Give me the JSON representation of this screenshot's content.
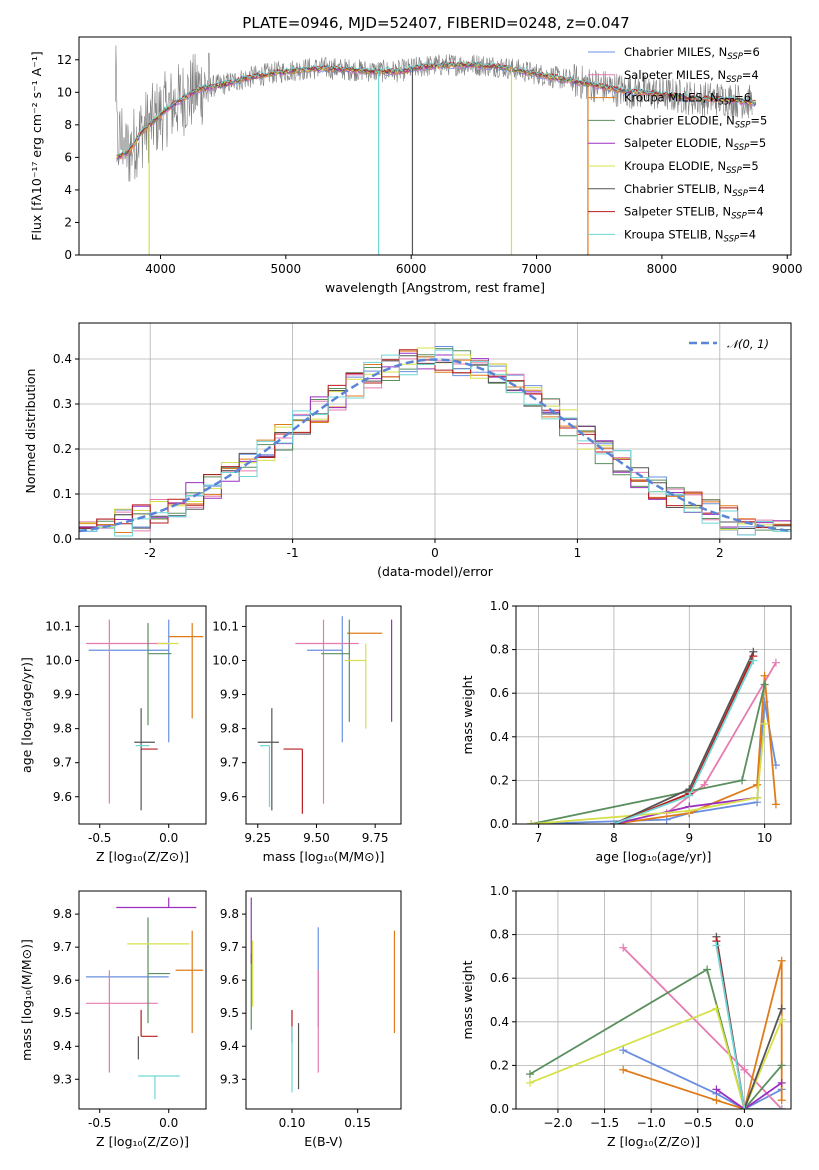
{
  "figure": {
    "title": "PLATE=0946, MJD=52407, FIBERID=0248, z=0.047"
  },
  "colors": {
    "Chabrier MILES": "#6a8fe0",
    "Salpeter MILES": "#e67bb0",
    "Kroupa MILES": "#e07b1a",
    "Chabrier ELODIE": "#5a8f5e",
    "Salpeter ELODIE": "#9b30c0",
    "Kroupa ELODIE": "#d6e04a",
    "Chabrier STELIB": "#555555",
    "Salpeter STELIB": "#b81c1c",
    "Kroupa STELIB": "#6fd6d6"
  },
  "chart_data": [
    {
      "id": "spectrum",
      "type": "line",
      "xlabel": "wavelength [Angstrom, rest frame]",
      "ylabel": "Flux [fλ10⁻¹⁷ erg cm⁻² s⁻¹ A⁻¹]",
      "xlim": [
        3350,
        9030
      ],
      "ylim": [
        0,
        13.4
      ],
      "xticks": [
        4000,
        5000,
        6000,
        7000,
        8000,
        9000
      ],
      "yticks": [
        0,
        2,
        4,
        6,
        8,
        10,
        12
      ],
      "legend_position": "top-right",
      "legend": [
        {
          "name": "Chabrier MILES",
          "label": "Chabrier MILES, N",
          "sub": "SSP",
          "post": "=6"
        },
        {
          "name": "Salpeter MILES",
          "label": "Salpeter MILES, N",
          "sub": "SSP",
          "post": "=4"
        },
        {
          "name": "Kroupa MILES",
          "label": "Kroupa MILES, N",
          "sub": "SSP",
          "post": "=6"
        },
        {
          "name": "Chabrier ELODIE",
          "label": "Chabrier ELODIE, N",
          "sub": "SSP",
          "post": "=5"
        },
        {
          "name": "Salpeter ELODIE",
          "label": "Salpeter ELODIE, N",
          "sub": "SSP",
          "post": "=5"
        },
        {
          "name": "Kroupa ELODIE",
          "label": "Kroupa ELODIE, N",
          "sub": "SSP",
          "post": "=5"
        },
        {
          "name": "Chabrier STELIB",
          "label": "Chabrier STELIB, N",
          "sub": "SSP",
          "post": "=4"
        },
        {
          "name": "Salpeter STELIB",
          "label": "Salpeter STELIB, N",
          "sub": "SSP",
          "post": "=4"
        },
        {
          "name": "Kroupa STELIB",
          "label": "Kroupa STELIB, N",
          "sub": "SSP",
          "post": "=4"
        }
      ],
      "data_curve": {
        "x": [
          3650,
          3750,
          3850,
          3950,
          4050,
          4150,
          4300,
          4500,
          4700,
          4900,
          5100,
          5300,
          5500,
          5700,
          5900,
          6100,
          6300,
          6500,
          6700,
          6900,
          7100,
          7300,
          7500,
          7700,
          7900,
          8100,
          8300,
          8500,
          8700
        ],
        "y": [
          6.0,
          6.4,
          7.6,
          8.3,
          9.0,
          9.5,
          10.2,
          10.5,
          10.9,
          11.2,
          11.4,
          11.5,
          11.4,
          11.3,
          11.3,
          11.6,
          11.7,
          11.7,
          11.6,
          11.3,
          11.0,
          10.7,
          10.4,
          10.1,
          10.0,
          9.8,
          9.6,
          9.6,
          9.4
        ]
      },
      "dips": [
        {
          "x": 3910,
          "y": 0,
          "series": "Kroupa ELODIE"
        },
        {
          "x": 5740,
          "y": 0,
          "series": "Kroupa STELIB"
        },
        {
          "x": 6010,
          "y": 0,
          "series": "Chabrier STELIB"
        },
        {
          "x": 6800,
          "y": 0,
          "series": "Kroupa ELODIE"
        },
        {
          "x": 7410,
          "y": 0,
          "series": "Kroupa MILES"
        }
      ]
    },
    {
      "id": "residuals",
      "type": "histogram",
      "xlabel": "(data-model)/error",
      "ylabel": "Normed distribution",
      "xlim": [
        -2.5,
        2.5
      ],
      "ylim": [
        0,
        0.48
      ],
      "xticks": [
        -2,
        -1,
        0,
        1,
        2
      ],
      "yticks": [
        0.0,
        0.1,
        0.2,
        0.3,
        0.4
      ],
      "grid": true,
      "legend_position": "top-right",
      "reference_curve": {
        "label": "𝒩(0, 1)",
        "mean": 0,
        "sigma": 1,
        "color": "#5b84d6"
      }
    },
    {
      "id": "age-vs-Z",
      "type": "errorbar",
      "xlabel": "Z [log₁₀(Z/Z⊙)]",
      "ylabel": "age  [log₁₀(age/yr)]",
      "xlim": [
        -0.65,
        0.27
      ],
      "ylim": [
        9.52,
        10.16
      ],
      "xticks": [
        -0.5,
        0.0
      ],
      "yticks": [
        9.6,
        9.7,
        9.8,
        9.9,
        10.0,
        10.1
      ],
      "points": [
        {
          "series": "Chabrier MILES",
          "x": 0.0,
          "xerr": [
            0.58,
            0.0
          ],
          "y": 10.03,
          "yerr": [
            0.27,
            0.09
          ]
        },
        {
          "series": "Salpeter MILES",
          "x": -0.43,
          "xerr": [
            0.17,
            0.43
          ],
          "y": 10.05,
          "yerr": [
            0.47,
            0.07
          ]
        },
        {
          "series": "Kroupa MILES",
          "x": 0.17,
          "xerr": [
            0.17,
            0.08
          ],
          "y": 10.07,
          "yerr": [
            0.24,
            0.04
          ]
        },
        {
          "series": "Chabrier ELODIE",
          "x": -0.15,
          "xerr": [
            0.0,
            0.17
          ],
          "y": 10.02,
          "yerr": [
            0.21,
            0.09
          ]
        },
        {
          "series": "Salpeter ELODIE",
          "x": -0.35,
          "xerr": [
            0.0,
            0.0
          ],
          "y": 10.05,
          "yerr": [
            0.0,
            0.0
          ]
        },
        {
          "series": "Kroupa ELODIE",
          "x": -0.08,
          "xerr": [
            0.0,
            0.15
          ],
          "y": 10.05,
          "yerr": [
            0.0,
            0.0
          ]
        },
        {
          "series": "Chabrier STELIB",
          "x": -0.2,
          "xerr": [
            0.05,
            0.1
          ],
          "y": 9.76,
          "yerr": [
            0.2,
            0.1
          ]
        },
        {
          "series": "Salpeter STELIB",
          "x": -0.2,
          "xerr": [
            0.0,
            0.12
          ],
          "y": 9.74,
          "yerr": [
            0.0,
            0.0
          ]
        },
        {
          "series": "Kroupa STELIB",
          "x": -0.22,
          "xerr": [
            0.02,
            0.08
          ],
          "y": 9.75,
          "yerr": [
            0.0,
            0.0
          ]
        }
      ]
    },
    {
      "id": "age-vs-mass",
      "type": "errorbar",
      "xlabel": "mass [log₁₀(M/M⊙)]",
      "ylabel": "",
      "xlim": [
        9.2,
        9.86
      ],
      "ylim": [
        9.52,
        10.16
      ],
      "xticks": [
        9.25,
        9.5,
        9.75
      ],
      "yticks": [
        9.6,
        9.7,
        9.8,
        9.9,
        10.0,
        10.1
      ],
      "points": [
        {
          "series": "Chabrier MILES",
          "x": 9.61,
          "xerr": [
            0.15,
            0.0
          ],
          "y": 10.03,
          "yerr": [
            0.27,
            0.1
          ]
        },
        {
          "series": "Salpeter MILES",
          "x": 9.53,
          "xerr": [
            0.12,
            0.15
          ],
          "y": 10.05,
          "yerr": [
            0.47,
            0.07
          ]
        },
        {
          "series": "Kroupa MILES",
          "x": 9.63,
          "xerr": [
            0.0,
            0.15
          ],
          "y": 10.08,
          "yerr": [
            0.0,
            0.0
          ]
        },
        {
          "series": "Chabrier ELODIE",
          "x": 9.64,
          "xerr": [
            0.12,
            0.0
          ],
          "y": 10.02,
          "yerr": [
            0.2,
            0.1
          ]
        },
        {
          "series": "Salpeter ELODIE",
          "x": 9.82,
          "xerr": [
            0.0,
            0.0
          ],
          "y": 10.05,
          "yerr": [
            0.23,
            0.07
          ]
        },
        {
          "series": "Kroupa ELODIE",
          "x": 9.71,
          "xerr": [
            0.09,
            0.0
          ],
          "y": 10.0,
          "yerr": [
            0.2,
            0.05
          ]
        },
        {
          "series": "Chabrier STELIB",
          "x": 9.31,
          "xerr": [
            0.06,
            0.03
          ],
          "y": 9.76,
          "yerr": [
            0.2,
            0.1
          ]
        },
        {
          "series": "Salpeter STELIB",
          "x": 9.44,
          "xerr": [
            0.08,
            0.0
          ],
          "y": 9.74,
          "yerr": [
            0.19,
            0.0
          ]
        },
        {
          "series": "Kroupa STELIB",
          "x": 9.3,
          "xerr": [
            0.04,
            0.0
          ],
          "y": 9.75,
          "yerr": [
            0.18,
            0.0
          ]
        }
      ]
    },
    {
      "id": "mass-weight-vs-age",
      "type": "line",
      "xlabel": "age  [log₁₀(age/yr)]",
      "ylabel": "mass weight",
      "xlim": [
        6.7,
        10.35
      ],
      "ylim": [
        0,
        1.0
      ],
      "xticks": [
        7,
        8,
        9,
        10
      ],
      "yticks": [
        0.0,
        0.2,
        0.4,
        0.6,
        0.8,
        1.0
      ],
      "grid": true,
      "series": [
        {
          "name": "Chabrier MILES",
          "x": [
            6.9,
            8.7,
            9.0,
            9.9,
            10.0,
            10.15
          ],
          "y": [
            0.0,
            0.02,
            0.05,
            0.1,
            0.56,
            0.27
          ]
        },
        {
          "name": "Salpeter MILES",
          "x": [
            8.7,
            9.2,
            10.15
          ],
          "y": [
            0.05,
            0.18,
            0.74
          ]
        },
        {
          "name": "Kroupa MILES",
          "x": [
            8.0,
            9.0,
            9.9,
            10.0,
            10.15
          ],
          "y": [
            0.0,
            0.05,
            0.18,
            0.68,
            0.09
          ]
        },
        {
          "name": "Chabrier ELODIE",
          "x": [
            6.9,
            9.0,
            9.7,
            10.0
          ],
          "y": [
            0.0,
            0.15,
            0.2,
            0.64
          ]
        },
        {
          "name": "Salpeter ELODIE",
          "x": [
            8.0,
            9.0,
            9.9
          ],
          "y": [
            0.0,
            0.08,
            0.12
          ]
        },
        {
          "name": "Kroupa ELODIE",
          "x": [
            6.9,
            9.0,
            9.9,
            10.0
          ],
          "y": [
            0.0,
            0.06,
            0.12,
            0.46
          ]
        },
        {
          "name": "Chabrier STELIB",
          "x": [
            8.0,
            9.0,
            9.85
          ],
          "y": [
            0.0,
            0.16,
            0.79
          ]
        },
        {
          "name": "Salpeter STELIB",
          "x": [
            8.0,
            9.0,
            9.85
          ],
          "y": [
            0.0,
            0.14,
            0.77
          ]
        },
        {
          "name": "Kroupa STELIB",
          "x": [
            8.0,
            9.0,
            9.85
          ],
          "y": [
            0.0,
            0.13,
            0.75
          ]
        }
      ]
    },
    {
      "id": "mass-vs-Z",
      "type": "errorbar",
      "xlabel": "Z [log₁₀(Z/Z⊙)]",
      "ylabel": "mass [log₁₀(M/M⊙)]",
      "xlim": [
        -0.65,
        0.27
      ],
      "ylim": [
        9.21,
        9.87
      ],
      "xticks": [
        -0.5,
        0.0
      ],
      "yticks": [
        9.3,
        9.4,
        9.5,
        9.6,
        9.7,
        9.8
      ],
      "points": [
        {
          "series": "Chabrier MILES",
          "x": -0.3,
          "xerr": [
            0.3,
            0.3
          ],
          "y": 9.61,
          "yerr": [
            0.0,
            0.0
          ]
        },
        {
          "series": "Salpeter MILES",
          "x": -0.43,
          "xerr": [
            0.17,
            0.35
          ],
          "y": 9.53,
          "yerr": [
            0.21,
            0.1
          ]
        },
        {
          "series": "Kroupa MILES",
          "x": 0.17,
          "xerr": [
            0.12,
            0.08
          ],
          "y": 9.63,
          "yerr": [
            0.19,
            0.12
          ]
        },
        {
          "series": "Chabrier ELODIE",
          "x": -0.15,
          "xerr": [
            0.0,
            0.16
          ],
          "y": 9.62,
          "yerr": [
            0.15,
            0.17
          ]
        },
        {
          "series": "Salpeter ELODIE",
          "x": 0.0,
          "xerr": [
            0.38,
            0.2
          ],
          "y": 9.82,
          "yerr": [
            0.0,
            0.03
          ]
        },
        {
          "series": "Kroupa ELODIE",
          "x": -0.05,
          "xerr": [
            0.25,
            0.2
          ],
          "y": 9.71,
          "yerr": [
            0.0,
            0.0
          ]
        },
        {
          "series": "Chabrier STELIB",
          "x": -0.22,
          "xerr": [
            0.0,
            0.0
          ],
          "y": 9.43,
          "yerr": [
            0.07,
            0.0
          ]
        },
        {
          "series": "Salpeter STELIB",
          "x": -0.2,
          "xerr": [
            0.0,
            0.12
          ],
          "y": 9.43,
          "yerr": [
            0.0,
            0.08
          ]
        },
        {
          "series": "Kroupa STELIB",
          "x": -0.1,
          "xerr": [
            0.12,
            0.18
          ],
          "y": 9.31,
          "yerr": [
            0.07,
            0.0
          ]
        }
      ]
    },
    {
      "id": "mass-vs-EBV",
      "type": "errorbar",
      "xlabel": "E(B-V)",
      "ylabel": "",
      "xlim": [
        0.065,
        0.183
      ],
      "ylim": [
        9.21,
        9.87
      ],
      "xticks": [
        0.1,
        0.15
      ],
      "yticks": [
        9.3,
        9.4,
        9.5,
        9.6,
        9.7,
        9.8
      ],
      "points": [
        {
          "series": "Chabrier MILES",
          "x": 0.12,
          "xerr": [
            0.0,
            0.0
          ],
          "y": 9.61,
          "yerr": [
            0.15,
            0.15
          ]
        },
        {
          "series": "Salpeter MILES",
          "x": 0.12,
          "xerr": [
            0.0,
            0.0
          ],
          "y": 9.53,
          "yerr": [
            0.21,
            0.1
          ]
        },
        {
          "series": "Kroupa MILES",
          "x": 0.178,
          "xerr": [
            0.0,
            0.0
          ],
          "y": 9.63,
          "yerr": [
            0.19,
            0.12
          ]
        },
        {
          "series": "Chabrier ELODIE",
          "x": 0.069,
          "xerr": [
            0.0,
            0.0
          ],
          "y": 9.62,
          "yerr": [
            0.17,
            0.06
          ]
        },
        {
          "series": "Salpeter ELODIE",
          "x": 0.069,
          "xerr": [
            0.0,
            0.0
          ],
          "y": 9.75,
          "yerr": [
            0.1,
            0.1
          ]
        },
        {
          "series": "Kroupa ELODIE",
          "x": 0.07,
          "xerr": [
            0.0,
            0.0
          ],
          "y": 9.62,
          "yerr": [
            0.1,
            0.1
          ]
        },
        {
          "series": "Chabrier STELIB",
          "x": 0.105,
          "xerr": [
            0.0,
            0.0
          ],
          "y": 9.37,
          "yerr": [
            0.1,
            0.1
          ]
        },
        {
          "series": "Salpeter STELIB",
          "x": 0.1,
          "xerr": [
            0.0,
            0.0
          ],
          "y": 9.46,
          "yerr": [
            0.05,
            0.05
          ]
        },
        {
          "series": "Kroupa STELIB",
          "x": 0.1,
          "xerr": [
            0.0,
            0.0
          ],
          "y": 9.36,
          "yerr": [
            0.1,
            0.1
          ]
        }
      ]
    },
    {
      "id": "mass-weight-vs-Z",
      "type": "line",
      "xlabel": "Z [log₁₀(Z/Z⊙)]",
      "ylabel": "mass weight",
      "xlim": [
        -2.45,
        0.5
      ],
      "ylim": [
        0,
        1.0
      ],
      "xticks": [
        -2.0,
        -1.5,
        -1.0,
        -0.5,
        0.0
      ],
      "yticks": [
        0.0,
        0.2,
        0.4,
        0.6,
        0.8,
        1.0
      ],
      "grid": true,
      "series": [
        {
          "name": "Chabrier MILES",
          "x": [
            -1.3,
            -0.3,
            0.0,
            0.4
          ],
          "y": [
            0.27,
            0.07,
            0.0,
            0.09
          ]
        },
        {
          "name": "Salpeter MILES",
          "x": [
            -1.3,
            0.0,
            0.4
          ],
          "y": [
            0.74,
            0.18,
            0.0
          ]
        },
        {
          "name": "Kroupa MILES",
          "x": [
            -1.3,
            -0.3,
            0.0,
            0.4,
            0.4
          ],
          "y": [
            0.18,
            0.04,
            0.0,
            0.68,
            0.04
          ]
        },
        {
          "name": "Chabrier ELODIE",
          "x": [
            -2.3,
            -0.4,
            0.0,
            0.4
          ],
          "y": [
            0.16,
            0.64,
            0.0,
            0.2
          ]
        },
        {
          "name": "Salpeter ELODIE",
          "x": [
            -0.3,
            0.0,
            0.4
          ],
          "y": [
            0.09,
            0.0,
            0.12
          ]
        },
        {
          "name": "Kroupa ELODIE",
          "x": [
            -2.3,
            -0.3,
            0.0,
            0.4
          ],
          "y": [
            0.12,
            0.46,
            0.0,
            0.41
          ]
        },
        {
          "name": "Chabrier STELIB",
          "x": [
            -0.3,
            0.0,
            0.4
          ],
          "y": [
            0.79,
            0.0,
            0.46
          ]
        },
        {
          "name": "Salpeter STELIB",
          "x": [
            -0.3,
            0.0,
            0.4
          ],
          "y": [
            0.77,
            0.0,
            0.0
          ]
        },
        {
          "name": "Kroupa STELIB",
          "x": [
            -0.3,
            0.0,
            0.4
          ],
          "y": [
            0.75,
            0.0,
            0.0
          ]
        }
      ]
    }
  ]
}
